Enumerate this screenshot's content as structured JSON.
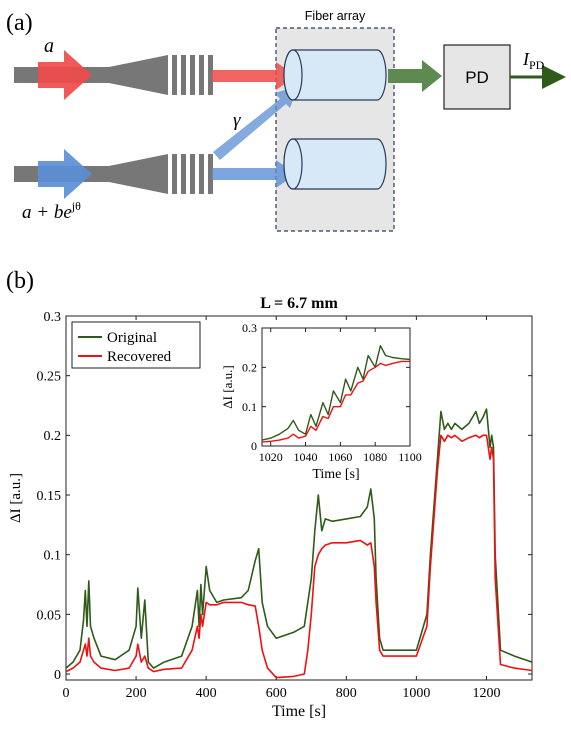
{
  "panel_a": {
    "label": "(a)",
    "input_top": "a",
    "input_bottom": "a + be",
    "input_bottom_sup": "jθ",
    "coupling": "γ",
    "array_label": "Fiber array",
    "detector": "PD",
    "output_main": "I",
    "output_sub": "PD",
    "colors": {
      "red": "#f04a4a",
      "blue": "#5b8fd6",
      "green": "#5e8a52",
      "grating": "#777777",
      "box": "#e6e6e6"
    }
  },
  "panel_b": {
    "label": "(b)"
  },
  "chart_data": [
    {
      "type": "line",
      "title": "L = 6.7 mm",
      "xlabel": "Time [s]",
      "ylabel": "ΔI [a.u.]",
      "xlim": [
        0,
        1330
      ],
      "ylim": [
        -0.005,
        0.3
      ],
      "xticks": [
        0,
        200,
        400,
        600,
        800,
        1000,
        1200
      ],
      "yticks": [
        0,
        0.05,
        0.1,
        0.15,
        0.2,
        0.25,
        0.3
      ],
      "ytick_labels": [
        "0",
        "0.05",
        "0.1",
        "0.15",
        "0.2",
        "0.25",
        "0.3"
      ],
      "legend": "top-left",
      "series": [
        {
          "name": "Original",
          "color": "#2f5a1a",
          "x": [
            0,
            20,
            40,
            50,
            55,
            60,
            65,
            70,
            80,
            100,
            140,
            180,
            200,
            205,
            215,
            225,
            235,
            250,
            280,
            330,
            360,
            375,
            380,
            385,
            390,
            400,
            410,
            430,
            450,
            500,
            520,
            540,
            550,
            560,
            575,
            600,
            650,
            680,
            690,
            700,
            710,
            720,
            730,
            740,
            760,
            800,
            840,
            860,
            870,
            880,
            885,
            895,
            905,
            930,
            960,
            1000,
            1030,
            1040,
            1050,
            1060,
            1070,
            1080,
            1090,
            1100,
            1110,
            1130,
            1150,
            1170,
            1180,
            1190,
            1200,
            1210,
            1215,
            1220,
            1225,
            1240,
            1280,
            1330
          ],
          "y": [
            0.005,
            0.01,
            0.02,
            0.045,
            0.07,
            0.04,
            0.078,
            0.04,
            0.03,
            0.015,
            0.012,
            0.02,
            0.04,
            0.072,
            0.03,
            0.062,
            0.01,
            0.005,
            0.01,
            0.015,
            0.04,
            0.07,
            0.04,
            0.075,
            0.05,
            0.09,
            0.07,
            0.06,
            0.062,
            0.064,
            0.07,
            0.095,
            0.105,
            0.06,
            0.04,
            0.03,
            0.035,
            0.04,
            0.06,
            0.08,
            0.12,
            0.15,
            0.12,
            0.13,
            0.128,
            0.13,
            0.132,
            0.14,
            0.155,
            0.13,
            0.08,
            0.03,
            0.02,
            0.02,
            0.02,
            0.02,
            0.05,
            0.1,
            0.14,
            0.18,
            0.22,
            0.205,
            0.21,
            0.205,
            0.21,
            0.205,
            0.21,
            0.22,
            0.21,
            0.215,
            0.222,
            0.19,
            0.2,
            0.19,
            0.1,
            0.02,
            0.015,
            0.01
          ]
        },
        {
          "name": "Recovered",
          "color": "#ee1111",
          "x": [
            0,
            20,
            40,
            50,
            55,
            60,
            65,
            70,
            80,
            100,
            140,
            180,
            200,
            205,
            215,
            225,
            235,
            250,
            280,
            330,
            360,
            375,
            380,
            385,
            390,
            400,
            410,
            430,
            450,
            500,
            520,
            540,
            550,
            560,
            575,
            600,
            650,
            680,
            690,
            700,
            710,
            720,
            730,
            740,
            760,
            800,
            840,
            860,
            870,
            880,
            885,
            895,
            905,
            930,
            960,
            1000,
            1030,
            1040,
            1050,
            1060,
            1070,
            1080,
            1090,
            1100,
            1110,
            1130,
            1150,
            1170,
            1180,
            1190,
            1200,
            1210,
            1215,
            1220,
            1225,
            1240,
            1280,
            1330
          ],
          "y": [
            0.002,
            0.005,
            0.01,
            0.02,
            0.025,
            0.015,
            0.03,
            0.015,
            0.01,
            0.005,
            0.003,
            0.005,
            0.015,
            0.025,
            0.01,
            0.015,
            0.005,
            0.002,
            0.004,
            0.005,
            0.02,
            0.04,
            0.03,
            0.05,
            0.04,
            0.06,
            0.058,
            0.058,
            0.06,
            0.06,
            0.058,
            0.057,
            0.04,
            0.02,
            0.005,
            -0.003,
            -0.002,
            0.0,
            0.02,
            0.05,
            0.09,
            0.1,
            0.105,
            0.108,
            0.11,
            0.11,
            0.112,
            0.108,
            0.11,
            0.09,
            0.06,
            0.02,
            0.015,
            0.015,
            0.015,
            0.015,
            0.04,
            0.09,
            0.13,
            0.17,
            0.2,
            0.195,
            0.2,
            0.198,
            0.2,
            0.195,
            0.198,
            0.2,
            0.198,
            0.2,
            0.2,
            0.18,
            0.19,
            0.18,
            0.08,
            0.008,
            0.005,
            0.003
          ]
        }
      ]
    },
    {
      "type": "line",
      "title": "",
      "xlabel": "Time [s]",
      "ylabel": "ΔI [a.u.]",
      "xlim": [
        1015,
        1100
      ],
      "ylim": [
        0,
        0.3
      ],
      "xticks": [
        1020,
        1040,
        1060,
        1080,
        1100
      ],
      "yticks": [
        0,
        0.1,
        0.2,
        0.3
      ],
      "ytick_labels": [
        "0",
        "0.1",
        "0.2",
        "0.3"
      ],
      "series": [
        {
          "name": "Original",
          "color": "#2f5a1a",
          "x": [
            1015,
            1020,
            1025,
            1030,
            1033,
            1036,
            1040,
            1043,
            1046,
            1050,
            1053,
            1056,
            1060,
            1063,
            1066,
            1070,
            1073,
            1076,
            1080,
            1083,
            1086,
            1090,
            1095,
            1100
          ],
          "y": [
            0.015,
            0.02,
            0.03,
            0.045,
            0.065,
            0.04,
            0.03,
            0.08,
            0.05,
            0.11,
            0.08,
            0.14,
            0.11,
            0.17,
            0.14,
            0.2,
            0.17,
            0.23,
            0.2,
            0.255,
            0.23,
            0.225,
            0.222,
            0.22
          ]
        },
        {
          "name": "Recovered",
          "color": "#ee1111",
          "x": [
            1015,
            1020,
            1025,
            1030,
            1033,
            1036,
            1040,
            1043,
            1046,
            1050,
            1053,
            1056,
            1060,
            1063,
            1066,
            1070,
            1073,
            1076,
            1080,
            1083,
            1086,
            1090,
            1095,
            1100
          ],
          "y": [
            0.01,
            0.012,
            0.015,
            0.02,
            0.03,
            0.02,
            0.025,
            0.05,
            0.04,
            0.075,
            0.07,
            0.1,
            0.1,
            0.13,
            0.13,
            0.16,
            0.165,
            0.19,
            0.2,
            0.21,
            0.205,
            0.21,
            0.215,
            0.215
          ]
        }
      ]
    }
  ]
}
